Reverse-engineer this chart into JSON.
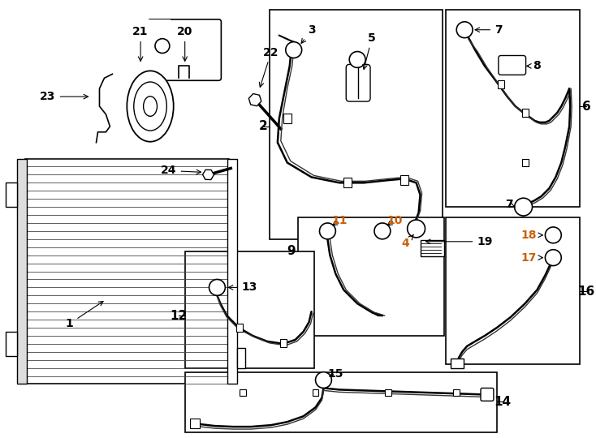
{
  "bg_color": "#ffffff",
  "line_color": "#000000",
  "fig_width": 7.34,
  "fig_height": 5.4,
  "dpi": 100,
  "orange": "#c8600a"
}
